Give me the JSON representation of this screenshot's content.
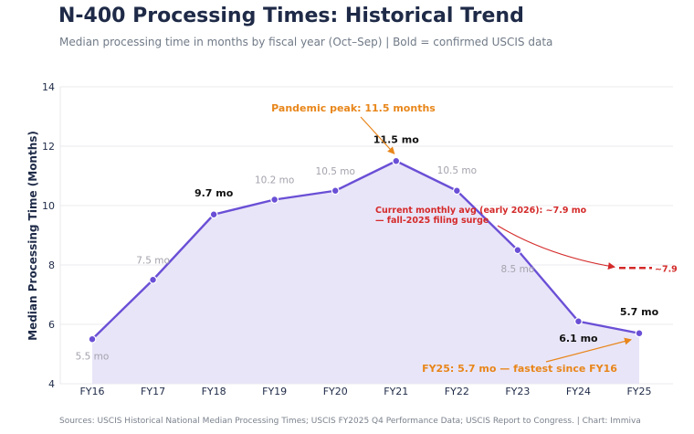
{
  "header": {
    "title": "N-400 Processing Times: Historical Trend",
    "subtitle": "Median processing time in months by fiscal year (Oct–Sep)  |  Bold = confirmed USCIS data"
  },
  "footer": {
    "text": "Sources: USCIS Historical National Median Processing Times; USCIS FY2025 Q4 Performance Data; USCIS Report to Congress.  |  Chart: Immiva"
  },
  "colors": {
    "line": "#6a4fd6",
    "fill": "#e9e5f8",
    "confirmed_label": "#111111",
    "estimate_label": "#a3a3ad",
    "annotation_orange": "#e8861a",
    "annotation_red": "#d42a2a",
    "axis_text": "#1e2a47"
  },
  "chart_data": {
    "type": "area",
    "title": "N-400 Processing Times: Historical Trend",
    "ylabel": "Median Processing Time (Months)",
    "xlabel": "",
    "ylim": [
      4,
      14
    ],
    "yticks": [
      4,
      6,
      8,
      10,
      12,
      14
    ],
    "grid": true,
    "categories": [
      "FY16",
      "FY17",
      "FY18",
      "FY19",
      "FY20",
      "FY21",
      "FY22",
      "FY23",
      "FY24",
      "FY25"
    ],
    "values": [
      5.5,
      7.5,
      9.7,
      10.2,
      10.5,
      11.5,
      10.5,
      8.5,
      6.1,
      5.7
    ],
    "labels": [
      "5.5 mo",
      "7.5 mo",
      "9.7 mo",
      "10.2 mo",
      "10.5 mo",
      "11.5 mo",
      "10.5 mo",
      "8.5 mo",
      "6.1 mo",
      "5.7 mo"
    ],
    "confirmed": [
      false,
      false,
      true,
      false,
      false,
      true,
      false,
      false,
      true,
      true
    ],
    "current_monthly_avg": {
      "value": 7.9,
      "label": "~7.9",
      "text_line1": "Current monthly avg (early 2026): ~7.9 mo",
      "text_line2": "— fall-2025 filing surge"
    },
    "annotations": [
      {
        "text": "Pandemic peak: 11.5 months",
        "target": "FY21"
      },
      {
        "text": "FY25: 5.7 mo — fastest since FY16",
        "target": "FY25"
      }
    ]
  }
}
